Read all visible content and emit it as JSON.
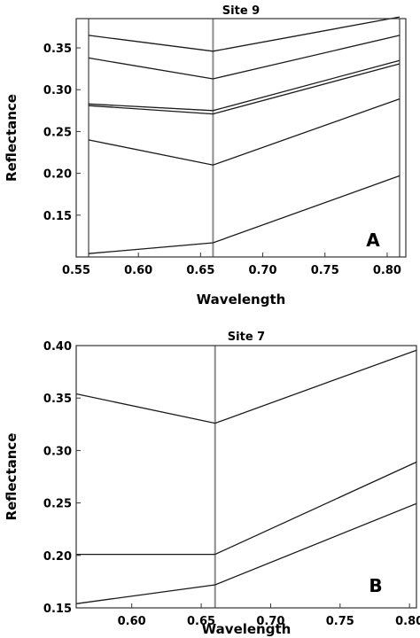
{
  "chart_data": [
    {
      "type": "line",
      "title": "Site 9",
      "xlabel": "Wavelength",
      "ylabel": "Reflectance",
      "panel_label": "A",
      "xlim": [
        0.55,
        0.815
      ],
      "ylim": [
        0.1,
        0.385
      ],
      "xticks": [
        0.55,
        0.6,
        0.65,
        0.7,
        0.75,
        0.8
      ],
      "xtick_labels": [
        "0.55",
        "0.60",
        "0.65",
        "0.70",
        "0.75",
        "0.80"
      ],
      "yticks": [
        0.15,
        0.2,
        0.25,
        0.3,
        0.35
      ],
      "ytick_labels": [
        "0.15",
        "0.20",
        "0.25",
        "0.30",
        "0.35"
      ],
      "vlines": [
        0.56,
        0.66,
        0.81
      ],
      "x": [
        0.56,
        0.66,
        0.81
      ],
      "series": [
        {
          "values": [
            0.365,
            0.346,
            0.387
          ]
        },
        {
          "values": [
            0.338,
            0.313,
            0.365
          ]
        },
        {
          "values": [
            0.283,
            0.275,
            0.335
          ]
        },
        {
          "values": [
            0.281,
            0.271,
            0.331
          ]
        },
        {
          "values": [
            0.24,
            0.21,
            0.289
          ]
        },
        {
          "values": [
            0.104,
            0.117,
            0.197
          ]
        }
      ],
      "grid": false
    },
    {
      "type": "line",
      "title": "Site 7",
      "xlabel": "Wavelength",
      "ylabel": "Reflectance",
      "panel_label": "B",
      "xlim": [
        0.56,
        0.805
      ],
      "ylim": [
        0.15,
        0.4
      ],
      "xticks": [
        0.6,
        0.65,
        0.7,
        0.75,
        0.8
      ],
      "xtick_labels": [
        "0.60",
        "0.65",
        "0.70",
        "0.75",
        "0.80"
      ],
      "yticks": [
        0.15,
        0.2,
        0.25,
        0.3,
        0.35,
        0.4
      ],
      "ytick_labels": [
        "0.15",
        "0.20",
        "0.25",
        "0.30",
        "0.35",
        "0.40"
      ],
      "vlines": [
        0.66
      ],
      "x": [
        0.56,
        0.66,
        0.81
      ],
      "series": [
        {
          "values": [
            0.354,
            0.326,
            0.398
          ]
        },
        {
          "values": [
            0.201,
            0.201,
            0.292
          ]
        },
        {
          "values": [
            0.154,
            0.172,
            0.252
          ]
        }
      ],
      "grid": false
    }
  ]
}
